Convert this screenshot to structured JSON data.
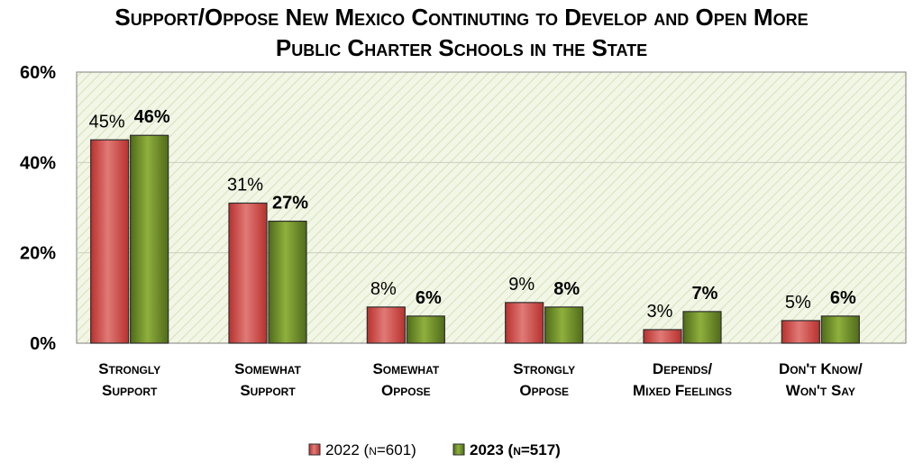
{
  "chart_data": {
    "type": "bar",
    "title_line1": "Support/Oppose New Mexico Continuting to Develop and Open More",
    "title_line2": "Public Charter Schools in the State",
    "categories": [
      [
        "Strongly",
        "Support"
      ],
      [
        "Somewhat",
        "Support"
      ],
      [
        "Somewhat",
        "Oppose"
      ],
      [
        "Strongly",
        "Oppose"
      ],
      [
        "Depends/",
        "Mixed Feelings"
      ],
      [
        "Don't Know/",
        "Won't Say"
      ]
    ],
    "series": [
      {
        "name": "2022 (n=601)",
        "year": "2022",
        "n": "(n=601)",
        "color": "#d9534f",
        "bold": false,
        "values": [
          45,
          31,
          8,
          9,
          3,
          5
        ],
        "labels": [
          "45%",
          "31%",
          "8%",
          "9%",
          "3%",
          "5%"
        ]
      },
      {
        "name": "2023 (n=517)",
        "year": "2023",
        "n": "(n=517)",
        "color": "#6b8e23",
        "bold": true,
        "values": [
          46,
          27,
          6,
          8,
          7,
          6
        ],
        "labels": [
          "46%",
          "27%",
          "6%",
          "8%",
          "7%",
          "6%"
        ]
      }
    ],
    "yticks": [
      "0%",
      "20%",
      "40%",
      "60%"
    ],
    "ytick_values": [
      0,
      20,
      40,
      60
    ],
    "ylim": [
      0,
      60
    ],
    "xlabel": "",
    "ylabel": "",
    "grid": true,
    "legend_position": "bottom",
    "plot_background": "#eef3e0"
  }
}
